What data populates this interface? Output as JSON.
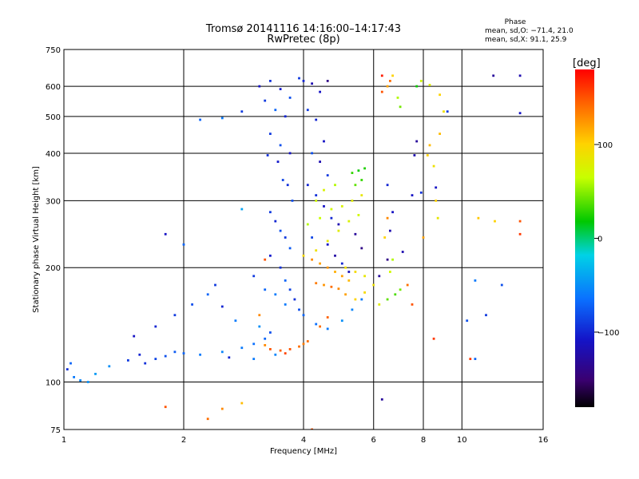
{
  "chart_data": {
    "type": "scatter",
    "title": "Tromsø 20141116 14:16:00–14:17:43",
    "subtitle": "RwPretec (8p)",
    "xlabel": "Frequency [MHz]",
    "ylabel": "Stationary phase Virtual Height [km]",
    "x_scale": "log",
    "y_scale": "log",
    "xlim": [
      1,
      16
    ],
    "ylim": [
      75,
      750
    ],
    "xticks": [
      1,
      2,
      4,
      6,
      8,
      10,
      16
    ],
    "yticks": [
      75,
      100,
      200,
      300,
      400,
      500,
      600,
      750
    ],
    "xgrid": [
      2,
      4,
      6,
      8,
      10
    ],
    "ygrid": [
      100,
      200,
      300,
      400,
      500,
      600
    ],
    "grid": true,
    "stats": {
      "title": "Phase",
      "line_o": "mean, sd,O: −71.4, 21.0",
      "line_x": "mean, sd,X:  91.1, 25.9"
    },
    "colorbar": {
      "label": "[deg]",
      "ticks": [
        "100",
        "0",
        "−100"
      ],
      "tick_values": [
        100,
        0,
        -100
      ],
      "range": [
        -180,
        180
      ]
    },
    "series": [
      {
        "points": [
          [
            1.02,
            108,
            -95
          ],
          [
            1.04,
            112,
            -70
          ],
          [
            1.06,
            103,
            -60
          ],
          [
            1.1,
            101,
            -55
          ],
          [
            1.15,
            100,
            -50
          ],
          [
            1.2,
            105,
            -45
          ],
          [
            1.3,
            110,
            -50
          ],
          [
            1.45,
            114,
            -90
          ],
          [
            1.55,
            118,
            -100
          ],
          [
            1.6,
            112,
            -95
          ],
          [
            1.7,
            115,
            -85
          ],
          [
            1.8,
            117,
            -80
          ],
          [
            1.9,
            120,
            -75
          ],
          [
            2.0,
            119,
            -70
          ],
          [
            2.2,
            118,
            -60
          ],
          [
            2.5,
            120,
            -55
          ],
          [
            2.8,
            123,
            -60
          ],
          [
            3.0,
            126,
            -65
          ],
          [
            3.2,
            130,
            -70
          ],
          [
            3.3,
            135,
            -80
          ],
          [
            1.5,
            132,
            -110
          ],
          [
            1.7,
            140,
            -100
          ],
          [
            1.9,
            150,
            -90
          ],
          [
            2.1,
            160,
            -80
          ],
          [
            2.3,
            170,
            -70
          ],
          [
            2.5,
            158,
            -100
          ],
          [
            2.7,
            145,
            -60
          ],
          [
            3.1,
            140,
            -50
          ],
          [
            2.4,
            180,
            -90
          ],
          [
            1.8,
            245,
            -110
          ],
          [
            2.0,
            230,
            -70
          ],
          [
            2.8,
            285,
            -40
          ],
          [
            2.2,
            490,
            -70
          ],
          [
            2.5,
            495,
            -60
          ],
          [
            2.8,
            515,
            -90
          ],
          [
            3.1,
            600,
            -110
          ],
          [
            3.3,
            620,
            -95
          ],
          [
            3.5,
            590,
            -105
          ],
          [
            3.7,
            560,
            -80
          ],
          [
            3.9,
            630,
            -90
          ],
          [
            3.2,
            550,
            -90
          ],
          [
            3.4,
            520,
            -70
          ],
          [
            3.6,
            500,
            -100
          ],
          [
            3.3,
            450,
            -90
          ],
          [
            3.5,
            420,
            -80
          ],
          [
            3.7,
            400,
            -110
          ],
          [
            3.25,
            395,
            -95
          ],
          [
            3.45,
            380,
            -105
          ],
          [
            3.55,
            340,
            -85
          ],
          [
            3.65,
            330,
            -95
          ],
          [
            3.75,
            300,
            -80
          ],
          [
            3.3,
            280,
            -90
          ],
          [
            3.4,
            265,
            -100
          ],
          [
            3.5,
            250,
            -80
          ],
          [
            3.6,
            240,
            -90
          ],
          [
            3.7,
            225,
            -75
          ],
          [
            3.3,
            215,
            -105
          ],
          [
            3.5,
            200,
            -95
          ],
          [
            3.6,
            185,
            -70
          ],
          [
            3.7,
            175,
            -85
          ],
          [
            3.8,
            165,
            -95
          ],
          [
            3.9,
            155,
            -80
          ],
          [
            3.4,
            170,
            -60
          ],
          [
            3.2,
            175,
            -70
          ],
          [
            3.6,
            160,
            -60
          ],
          [
            3.0,
            190,
            -90
          ],
          [
            4.0,
            620,
            -100
          ],
          [
            4.2,
            610,
            -120
          ],
          [
            4.4,
            580,
            -110
          ],
          [
            4.6,
            620,
            -140
          ],
          [
            4.1,
            520,
            -90
          ],
          [
            4.3,
            490,
            -100
          ],
          [
            4.5,
            430,
            -110
          ],
          [
            4.2,
            400,
            -80
          ],
          [
            4.4,
            380,
            -120
          ],
          [
            4.6,
            350,
            -90
          ],
          [
            4.1,
            330,
            -100
          ],
          [
            4.3,
            310,
            -95
          ],
          [
            4.5,
            290,
            -110
          ],
          [
            4.7,
            270,
            -100
          ],
          [
            4.9,
            260,
            -120
          ],
          [
            4.2,
            240,
            -85
          ],
          [
            4.6,
            230,
            -110
          ],
          [
            4.8,
            215,
            -125
          ],
          [
            5.0,
            205,
            -100
          ],
          [
            5.2,
            195,
            -115
          ],
          [
            5.4,
            245,
            -130
          ],
          [
            5.6,
            225,
            -140
          ],
          [
            4.0,
            150,
            -70
          ],
          [
            4.3,
            142,
            -65
          ],
          [
            4.6,
            138,
            -60
          ],
          [
            5.0,
            145,
            -50
          ],
          [
            5.3,
            155,
            -55
          ],
          [
            5.6,
            165,
            -60
          ],
          [
            6.2,
            190,
            -130
          ],
          [
            6.5,
            210,
            -140
          ],
          [
            6.6,
            250,
            -120
          ],
          [
            6.7,
            280,
            -110
          ],
          [
            6.5,
            330,
            -100
          ],
          [
            7.1,
            220,
            -120
          ],
          [
            7.5,
            310,
            -110
          ],
          [
            7.6,
            395,
            -120
          ],
          [
            7.7,
            430,
            -130
          ],
          [
            7.9,
            315,
            -95
          ],
          [
            8.6,
            325,
            -110
          ],
          [
            6.3,
            90,
            -130
          ],
          [
            9.2,
            515,
            -90
          ],
          [
            10.8,
            185,
            -60
          ],
          [
            11.5,
            150,
            -90
          ],
          [
            10.3,
            145,
            -80
          ],
          [
            10.8,
            115,
            -70
          ],
          [
            12.6,
            180,
            -80
          ],
          [
            14.0,
            510,
            -110
          ],
          [
            14.0,
            640,
            -120
          ],
          [
            12.0,
            640,
            -130
          ],
          [
            3.0,
            115,
            -60
          ],
          [
            3.4,
            118,
            -55
          ],
          [
            2.6,
            116,
            -100
          ]
        ]
      },
      {
        "points": [
          [
            3.3,
            122,
            150
          ],
          [
            3.5,
            121,
            145
          ],
          [
            3.7,
            122,
            150
          ],
          [
            3.9,
            124,
            140
          ],
          [
            4.0,
            126,
            135
          ],
          [
            4.1,
            128,
            140
          ],
          [
            3.6,
            119,
            155
          ],
          [
            3.2,
            125,
            130
          ],
          [
            4.2,
            210,
            130
          ],
          [
            4.4,
            205,
            120
          ],
          [
            4.6,
            200,
            125
          ],
          [
            4.8,
            195,
            115
          ],
          [
            5.0,
            190,
            120
          ],
          [
            5.2,
            185,
            110
          ],
          [
            4.3,
            182,
            135
          ],
          [
            4.5,
            180,
            125
          ],
          [
            4.7,
            178,
            140
          ],
          [
            4.9,
            176,
            130
          ],
          [
            5.1,
            170,
            120
          ],
          [
            4.0,
            215,
            95
          ],
          [
            4.3,
            222,
            90
          ],
          [
            4.6,
            235,
            85
          ],
          [
            4.9,
            250,
            80
          ],
          [
            5.2,
            265,
            75
          ],
          [
            5.5,
            275,
            70
          ],
          [
            4.1,
            260,
            60
          ],
          [
            4.4,
            270,
            65
          ],
          [
            4.7,
            285,
            70
          ],
          [
            5.0,
            290,
            75
          ],
          [
            5.3,
            300,
            80
          ],
          [
            5.6,
            310,
            85
          ],
          [
            4.3,
            300,
            70
          ],
          [
            4.5,
            320,
            75
          ],
          [
            4.8,
            330,
            60
          ],
          [
            5.3,
            355,
            30
          ],
          [
            5.5,
            360,
            20
          ],
          [
            5.7,
            365,
            25
          ],
          [
            5.4,
            330,
            40
          ],
          [
            5.6,
            340,
            30
          ],
          [
            5.1,
            200,
            90
          ],
          [
            5.4,
            195,
            95
          ],
          [
            5.7,
            190,
            85
          ],
          [
            5.4,
            165,
            100
          ],
          [
            5.7,
            172,
            95
          ],
          [
            6.0,
            180,
            90
          ],
          [
            6.2,
            160,
            80
          ],
          [
            6.5,
            165,
            40
          ],
          [
            6.8,
            170,
            35
          ],
          [
            7.0,
            175,
            45
          ],
          [
            6.6,
            195,
            70
          ],
          [
            6.7,
            210,
            60
          ],
          [
            6.4,
            240,
            100
          ],
          [
            6.5,
            270,
            130
          ],
          [
            6.3,
            580,
            150
          ],
          [
            6.5,
            600,
            120
          ],
          [
            6.6,
            620,
            140
          ],
          [
            6.7,
            640,
            100
          ],
          [
            6.9,
            560,
            60
          ],
          [
            7.0,
            530,
            45
          ],
          [
            7.7,
            600,
            20
          ],
          [
            7.9,
            620,
            70
          ],
          [
            8.3,
            605,
            80
          ],
          [
            8.8,
            570,
            100
          ],
          [
            9.0,
            515,
            90
          ],
          [
            8.8,
            450,
            110
          ],
          [
            8.3,
            420,
            110
          ],
          [
            8.2,
            395,
            100
          ],
          [
            8.5,
            370,
            90
          ],
          [
            8.6,
            300,
            100
          ],
          [
            8.0,
            240,
            120
          ],
          [
            8.7,
            270,
            85
          ],
          [
            7.3,
            180,
            140
          ],
          [
            7.5,
            160,
            150
          ],
          [
            3.2,
            210,
            150
          ],
          [
            3.1,
            150,
            130
          ],
          [
            4.4,
            140,
            140
          ],
          [
            4.6,
            148,
            145
          ],
          [
            4.2,
            75,
            150
          ],
          [
            2.3,
            80,
            140
          ],
          [
            1.8,
            86,
            150
          ],
          [
            2.5,
            85,
            130
          ],
          [
            2.8,
            88,
            110
          ],
          [
            6.3,
            640,
            170
          ],
          [
            10.5,
            115,
            160
          ],
          [
            8.5,
            130,
            160
          ],
          [
            12.1,
            265,
            100
          ],
          [
            14.0,
            265,
            150
          ],
          [
            14.0,
            245,
            160
          ],
          [
            11.0,
            270,
            105
          ]
        ]
      }
    ]
  }
}
